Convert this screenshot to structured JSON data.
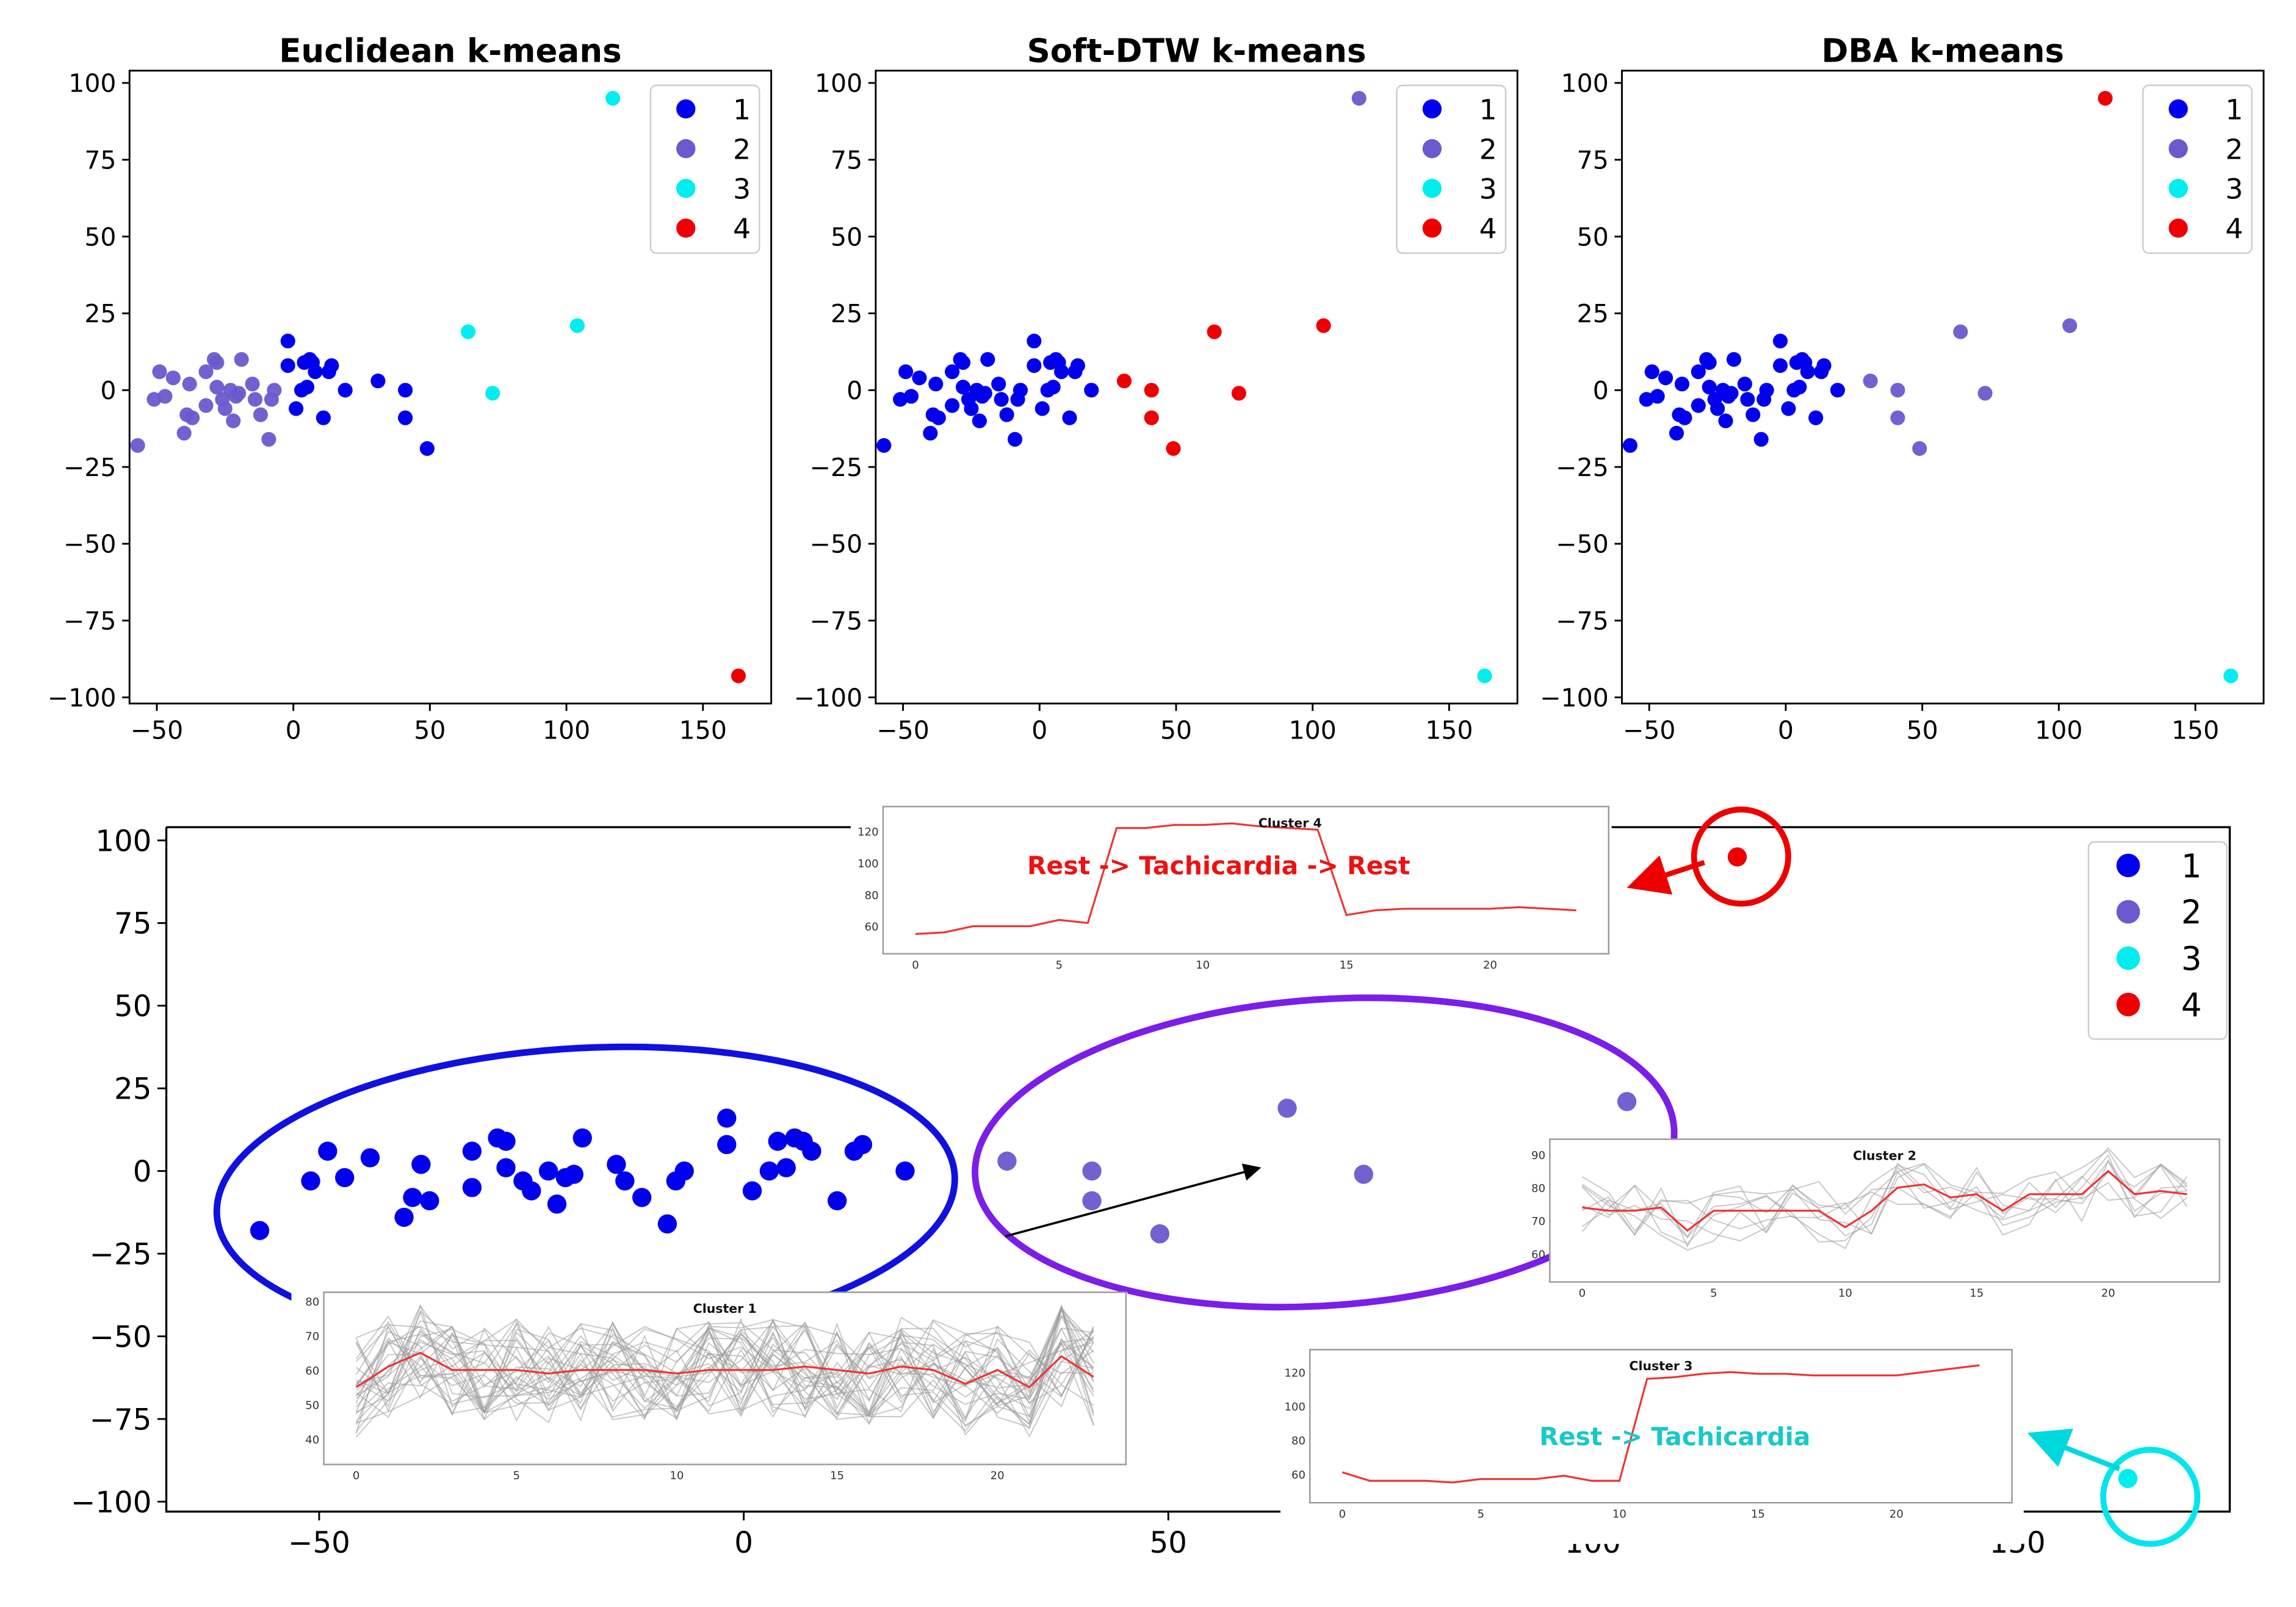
{
  "colors": {
    "1": "#0000ee",
    "2": "#6a5acd",
    "3": "#00eeee",
    "4": "#ee0000"
  },
  "chart_data": {
    "type": "scatter",
    "legend_labels": [
      "1",
      "2",
      "3",
      "4"
    ],
    "panels": [
      {
        "title": "Euclidean k-means",
        "xlim": [
          -60,
          175
        ],
        "ylim": [
          -102,
          104
        ],
        "xticks": [
          -50,
          0,
          50,
          100,
          150
        ],
        "yticks": [
          100,
          75,
          50,
          25,
          0,
          -25,
          -50,
          -75,
          -100
        ],
        "xtick_labels": [
          "−50",
          "0",
          "50",
          "100",
          "150"
        ],
        "ytick_labels": [
          "100",
          "75",
          "50",
          "25",
          "0",
          "−25",
          "−50",
          "−75",
          "−100"
        ],
        "legend_position": "top-right",
        "labels_by_group": {
          "A": "2",
          "B": "1",
          "C": "1",
          "E": "1",
          "D": "3",
          "F": "4"
        }
      },
      {
        "title": "Soft-DTW k-means",
        "xlim": [
          -60,
          175
        ],
        "ylim": [
          -102,
          104
        ],
        "xticks": [
          -50,
          0,
          50,
          100,
          150
        ],
        "yticks": [
          100,
          75,
          50,
          25,
          0,
          -25,
          -50,
          -75,
          -100
        ],
        "xtick_labels": [
          "−50",
          "0",
          "50",
          "100",
          "150"
        ],
        "ytick_labels": [
          "100",
          "75",
          "50",
          "25",
          "0",
          "−25",
          "−50",
          "−75",
          "−100"
        ],
        "legend_position": "top-right",
        "labels_by_group": {
          "A": "1",
          "B": "1",
          "C": "4",
          "E": "4",
          "D": "4",
          "F": "3"
        },
        "override": {
          "x": 117,
          "y": 95,
          "label": "2"
        }
      },
      {
        "title": "DBA k-means",
        "xlim": [
          -60,
          175
        ],
        "ylim": [
          -102,
          104
        ],
        "xticks": [
          -50,
          0,
          50,
          100,
          150
        ],
        "yticks": [
          100,
          75,
          50,
          25,
          0,
          -25,
          -50,
          -75,
          -100
        ],
        "xtick_labels": [
          "−50",
          "0",
          "50",
          "100",
          "150"
        ],
        "ytick_labels": [
          "100",
          "75",
          "50",
          "25",
          "0",
          "−25",
          "−50",
          "−75",
          "−100"
        ],
        "legend_position": "top-right",
        "labels_by_group": {
          "A": "1",
          "B": "1",
          "C": "2",
          "E": "2",
          "D": "2",
          "F": "3"
        },
        "override": {
          "x": 117,
          "y": 95,
          "label": "4"
        }
      },
      {
        "title": "",
        "xlim": [
          -68,
          175
        ],
        "ylim": [
          -103,
          104
        ],
        "xticks": [
          -50,
          0,
          50,
          100,
          150
        ],
        "yticks": [
          100,
          75,
          50,
          25,
          0,
          -25,
          -50,
          -75,
          -100
        ],
        "xtick_labels": [
          "−50",
          "0",
          "50",
          "100",
          "150"
        ],
        "ytick_labels": [
          "100",
          "75",
          "50",
          "25",
          "0",
          "−25",
          "−50",
          "−75",
          "−100"
        ],
        "legend_position": "top-right",
        "labels_by_group": {
          "A": "1",
          "B": "1",
          "C": "2",
          "E": "2",
          "D": "2",
          "F": "3"
        },
        "override": {
          "x": 117,
          "y": 95,
          "label": "4"
        }
      }
    ],
    "points": [
      {
        "x": -57,
        "y": -18,
        "g": "A"
      },
      {
        "x": -51,
        "y": -3,
        "g": "A"
      },
      {
        "x": -49,
        "y": 6,
        "g": "A"
      },
      {
        "x": -47,
        "y": -2,
        "g": "A"
      },
      {
        "x": -44,
        "y": 4,
        "g": "A"
      },
      {
        "x": -40,
        "y": -14,
        "g": "A"
      },
      {
        "x": -39,
        "y": -8,
        "g": "A"
      },
      {
        "x": -38,
        "y": 2,
        "g": "A"
      },
      {
        "x": -37,
        "y": -9,
        "g": "A"
      },
      {
        "x": -32,
        "y": -5,
        "g": "A"
      },
      {
        "x": -32,
        "y": 6,
        "g": "A"
      },
      {
        "x": -29,
        "y": 10,
        "g": "A"
      },
      {
        "x": -28,
        "y": 9,
        "g": "A"
      },
      {
        "x": -28,
        "y": 1,
        "g": "A"
      },
      {
        "x": -26,
        "y": -3,
        "g": "A"
      },
      {
        "x": -25,
        "y": -6,
        "g": "A"
      },
      {
        "x": -23,
        "y": 0,
        "g": "A"
      },
      {
        "x": -22,
        "y": -10,
        "g": "A"
      },
      {
        "x": -21,
        "y": -2,
        "g": "A"
      },
      {
        "x": -20,
        "y": -1,
        "g": "A"
      },
      {
        "x": -19,
        "y": 10,
        "g": "A"
      },
      {
        "x": -15,
        "y": 2,
        "g": "A"
      },
      {
        "x": -14,
        "y": -3,
        "g": "A"
      },
      {
        "x": -12,
        "y": -8,
        "g": "A"
      },
      {
        "x": -9,
        "y": -16,
        "g": "A"
      },
      {
        "x": -8,
        "y": -3,
        "g": "A"
      },
      {
        "x": -7,
        "y": 0,
        "g": "A"
      },
      {
        "x": -2,
        "y": 16,
        "g": "B"
      },
      {
        "x": -2,
        "y": 8,
        "g": "B"
      },
      {
        "x": 1,
        "y": -6,
        "g": "B"
      },
      {
        "x": 3,
        "y": 0,
        "g": "B"
      },
      {
        "x": 4,
        "y": 9,
        "g": "B"
      },
      {
        "x": 5,
        "y": 1,
        "g": "B"
      },
      {
        "x": 6,
        "y": 10,
        "g": "B"
      },
      {
        "x": 7,
        "y": 9,
        "g": "B"
      },
      {
        "x": 8,
        "y": 6,
        "g": "B"
      },
      {
        "x": 11,
        "y": -9,
        "g": "B"
      },
      {
        "x": 13,
        "y": 6,
        "g": "B"
      },
      {
        "x": 14,
        "y": 8,
        "g": "B"
      },
      {
        "x": 19,
        "y": 0,
        "g": "B"
      },
      {
        "x": 31,
        "y": 3,
        "g": "C"
      },
      {
        "x": 41,
        "y": 0,
        "g": "E"
      },
      {
        "x": 41,
        "y": -9,
        "g": "E"
      },
      {
        "x": 49,
        "y": -19,
        "g": "E"
      },
      {
        "x": 64,
        "y": 19,
        "g": "D"
      },
      {
        "x": 73,
        "y": -1,
        "g": "D"
      },
      {
        "x": 104,
        "y": 21,
        "g": "D"
      },
      {
        "x": 117,
        "y": 95,
        "g": "D"
      },
      {
        "x": 163,
        "y": -93,
        "g": "F"
      }
    ]
  },
  "insets": [
    {
      "title": "Cluster 4",
      "yticks": [
        "120",
        "100",
        "80",
        "60"
      ],
      "xticks": [
        "0",
        "5",
        "10",
        "15",
        "20"
      ],
      "annotation": "Rest -> Tachicardia -> Rest",
      "series": [
        55,
        56,
        60,
        60,
        60,
        64,
        62,
        122,
        122,
        124,
        124,
        125,
        123,
        122,
        121,
        67,
        70,
        71,
        71,
        71,
        71,
        72,
        71,
        70
      ]
    },
    {
      "title": "Cluster 2",
      "yticks": [
        "90",
        "80",
        "70",
        "60"
      ],
      "xticks": [
        "0",
        "5",
        "10",
        "15",
        "20"
      ],
      "series": [
        74,
        73,
        73,
        74,
        67,
        73,
        73,
        73,
        73,
        73,
        68,
        73,
        80,
        81,
        77,
        78,
        73,
        78,
        78,
        78,
        85,
        78,
        79,
        78
      ]
    },
    {
      "title": "Cluster 1",
      "yticks": [
        "80",
        "70",
        "60",
        "50",
        "40"
      ],
      "xticks": [
        "0",
        "5",
        "10",
        "15",
        "20"
      ],
      "series": [
        55,
        61,
        65,
        60,
        60,
        60,
        59,
        60,
        60,
        60,
        59,
        60,
        60,
        60,
        61,
        60,
        59,
        61,
        60,
        56,
        60,
        55,
        64,
        58
      ]
    },
    {
      "title": "Cluster 3",
      "yticks": [
        "120",
        "100",
        "80",
        "60"
      ],
      "xticks": [
        "0",
        "5",
        "10",
        "15",
        "20"
      ],
      "annotation": "Rest -> Tachicardia",
      "series": [
        61,
        56,
        56,
        56,
        55,
        57,
        57,
        57,
        59,
        56,
        56,
        116,
        117,
        119,
        120,
        119,
        119,
        118,
        118,
        118,
        118,
        120,
        122,
        124
      ]
    }
  ]
}
